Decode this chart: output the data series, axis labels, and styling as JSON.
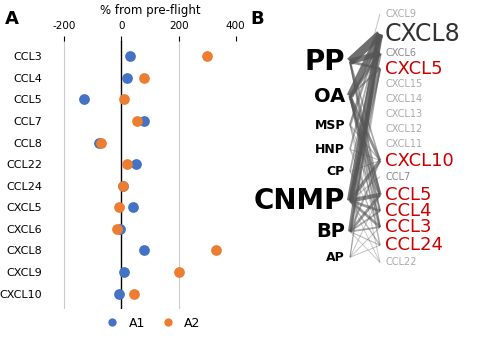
{
  "panel_A": {
    "chemokines": [
      "CCL3",
      "CCL4",
      "CCL5",
      "CCL7",
      "CCL8",
      "CCL22",
      "CCL24",
      "CXCL5",
      "CXCL6",
      "CXCL8",
      "CXCL9",
      "CXCL10"
    ],
    "A1": [
      30,
      20,
      -130,
      80,
      -80,
      50,
      5,
      40,
      -5,
      80,
      10,
      -10
    ],
    "A2": [
      300,
      80,
      10,
      55,
      -70,
      20,
      5,
      -10,
      -15,
      330,
      200,
      45
    ],
    "xlim": [
      -250,
      450
    ],
    "xticks": [
      -200,
      0,
      200,
      400
    ],
    "xlabel": "% from pre-flight",
    "color_A1": "#4472C4",
    "color_A2": "#ED7D31"
  },
  "panel_B": {
    "conditions": [
      "PP",
      "OA",
      "MSP",
      "HNP",
      "CP",
      "CNMP",
      "BP",
      "AP"
    ],
    "cond_y": [
      0.82,
      0.72,
      0.635,
      0.565,
      0.5,
      0.415,
      0.325,
      0.25
    ],
    "cond_fontsize": [
      20,
      14,
      9,
      9,
      9,
      20,
      14,
      9
    ],
    "chemokines_right": [
      "CXCL9",
      "CXCL8",
      "CXCL6",
      "CXCL5",
      "CXCL15",
      "CXCL14",
      "CXCL13",
      "CXCL12",
      "CXCL11",
      "CXCL10",
      "CCL7",
      "CCL5",
      "CCL4",
      "CCL3",
      "CCL24",
      "CCL22"
    ],
    "chem_y": [
      0.96,
      0.9,
      0.845,
      0.8,
      0.755,
      0.712,
      0.668,
      0.624,
      0.58,
      0.532,
      0.485,
      0.432,
      0.385,
      0.338,
      0.285,
      0.235
    ],
    "chem_color": [
      "#aaaaaa",
      "#333333",
      "#888888",
      "#cc0000",
      "#aaaaaa",
      "#aaaaaa",
      "#aaaaaa",
      "#aaaaaa",
      "#aaaaaa",
      "#cc0000",
      "#888888",
      "#cc0000",
      "#cc0000",
      "#cc0000",
      "#cc0000",
      "#aaaaaa"
    ],
    "chem_fontsize": [
      7,
      17,
      7,
      13,
      7,
      7,
      7,
      7,
      7,
      13,
      7,
      13,
      13,
      13,
      13,
      7
    ],
    "connections": [
      {
        "from": "PP",
        "to": "CXCL8",
        "lw": 6.0,
        "alpha": 0.85
      },
      {
        "from": "PP",
        "to": "CXCL6",
        "lw": 4.0,
        "alpha": 0.8
      },
      {
        "from": "PP",
        "to": "CXCL5",
        "lw": 2.0,
        "alpha": 0.65
      },
      {
        "from": "PP",
        "to": "CXCL10",
        "lw": 1.2,
        "alpha": 0.5
      },
      {
        "from": "PP",
        "to": "CCL5",
        "lw": 1.5,
        "alpha": 0.55
      },
      {
        "from": "PP",
        "to": "CCL4",
        "lw": 1.0,
        "alpha": 0.45
      },
      {
        "from": "PP",
        "to": "CCL3",
        "lw": 1.0,
        "alpha": 0.45
      },
      {
        "from": "OA",
        "to": "CXCL8",
        "lw": 5.0,
        "alpha": 0.8
      },
      {
        "from": "OA",
        "to": "CXCL6",
        "lw": 2.5,
        "alpha": 0.65
      },
      {
        "from": "OA",
        "to": "CXCL5",
        "lw": 1.5,
        "alpha": 0.55
      },
      {
        "from": "OA",
        "to": "CXCL10",
        "lw": 2.0,
        "alpha": 0.65
      },
      {
        "from": "OA",
        "to": "CCL5",
        "lw": 2.5,
        "alpha": 0.65
      },
      {
        "from": "OA",
        "to": "CCL4",
        "lw": 1.5,
        "alpha": 0.55
      },
      {
        "from": "OA",
        "to": "CCL3",
        "lw": 1.5,
        "alpha": 0.55
      },
      {
        "from": "OA",
        "to": "CCL24",
        "lw": 1.0,
        "alpha": 0.45
      },
      {
        "from": "MSP",
        "to": "CXCL9",
        "lw": 0.7,
        "alpha": 0.35
      },
      {
        "from": "MSP",
        "to": "CXCL8",
        "lw": 1.8,
        "alpha": 0.55
      },
      {
        "from": "MSP",
        "to": "CXCL10",
        "lw": 1.0,
        "alpha": 0.45
      },
      {
        "from": "MSP",
        "to": "CCL5",
        "lw": 0.8,
        "alpha": 0.38
      },
      {
        "from": "MSP",
        "to": "CCL3",
        "lw": 0.8,
        "alpha": 0.38
      },
      {
        "from": "MSP",
        "to": "CCL22",
        "lw": 0.7,
        "alpha": 0.3
      },
      {
        "from": "HNP",
        "to": "CXCL8",
        "lw": 1.3,
        "alpha": 0.5
      },
      {
        "from": "HNP",
        "to": "CXCL10",
        "lw": 0.8,
        "alpha": 0.4
      },
      {
        "from": "HNP",
        "to": "CCL5",
        "lw": 0.7,
        "alpha": 0.35
      },
      {
        "from": "HNP",
        "to": "CCL3",
        "lw": 0.7,
        "alpha": 0.35
      },
      {
        "from": "CP",
        "to": "CXCL8",
        "lw": 1.3,
        "alpha": 0.5
      },
      {
        "from": "CP",
        "to": "CXCL10",
        "lw": 0.8,
        "alpha": 0.4
      },
      {
        "from": "CP",
        "to": "CCL4",
        "lw": 0.7,
        "alpha": 0.35
      },
      {
        "from": "CP",
        "to": "CCL3",
        "lw": 0.7,
        "alpha": 0.35
      },
      {
        "from": "CNMP",
        "to": "CXCL8",
        "lw": 4.5,
        "alpha": 0.78
      },
      {
        "from": "CNMP",
        "to": "CXCL6",
        "lw": 2.5,
        "alpha": 0.65
      },
      {
        "from": "CNMP",
        "to": "CXCL5",
        "lw": 2.0,
        "alpha": 0.6
      },
      {
        "from": "CNMP",
        "to": "CXCL10",
        "lw": 2.5,
        "alpha": 0.65
      },
      {
        "from": "CNMP",
        "to": "CCL7",
        "lw": 0.8,
        "alpha": 0.4
      },
      {
        "from": "CNMP",
        "to": "CCL5",
        "lw": 3.0,
        "alpha": 0.7
      },
      {
        "from": "CNMP",
        "to": "CCL4",
        "lw": 2.0,
        "alpha": 0.6
      },
      {
        "from": "CNMP",
        "to": "CCL3",
        "lw": 2.0,
        "alpha": 0.6
      },
      {
        "from": "CNMP",
        "to": "CCL24",
        "lw": 1.0,
        "alpha": 0.42
      },
      {
        "from": "CNMP",
        "to": "CCL22",
        "lw": 0.7,
        "alpha": 0.3
      },
      {
        "from": "BP",
        "to": "CXCL8",
        "lw": 3.0,
        "alpha": 0.7
      },
      {
        "from": "BP",
        "to": "CXCL5",
        "lw": 1.3,
        "alpha": 0.5
      },
      {
        "from": "BP",
        "to": "CXCL10",
        "lw": 1.3,
        "alpha": 0.5
      },
      {
        "from": "BP",
        "to": "CCL5",
        "lw": 2.0,
        "alpha": 0.6
      },
      {
        "from": "BP",
        "to": "CCL4",
        "lw": 1.3,
        "alpha": 0.5
      },
      {
        "from": "BP",
        "to": "CCL3",
        "lw": 1.3,
        "alpha": 0.5
      },
      {
        "from": "BP",
        "to": "CCL24",
        "lw": 0.8,
        "alpha": 0.4
      },
      {
        "from": "BP",
        "to": "CCL22",
        "lw": 0.7,
        "alpha": 0.3
      },
      {
        "from": "AP",
        "to": "CXCL8",
        "lw": 0.8,
        "alpha": 0.38
      },
      {
        "from": "AP",
        "to": "CXCL5",
        "lw": 0.7,
        "alpha": 0.35
      },
      {
        "from": "AP",
        "to": "CCL5",
        "lw": 0.7,
        "alpha": 0.35
      },
      {
        "from": "AP",
        "to": "CCL3",
        "lw": 0.7,
        "alpha": 0.35
      },
      {
        "from": "AP",
        "to": "CCL24",
        "lw": 0.7,
        "alpha": 0.35
      }
    ]
  }
}
